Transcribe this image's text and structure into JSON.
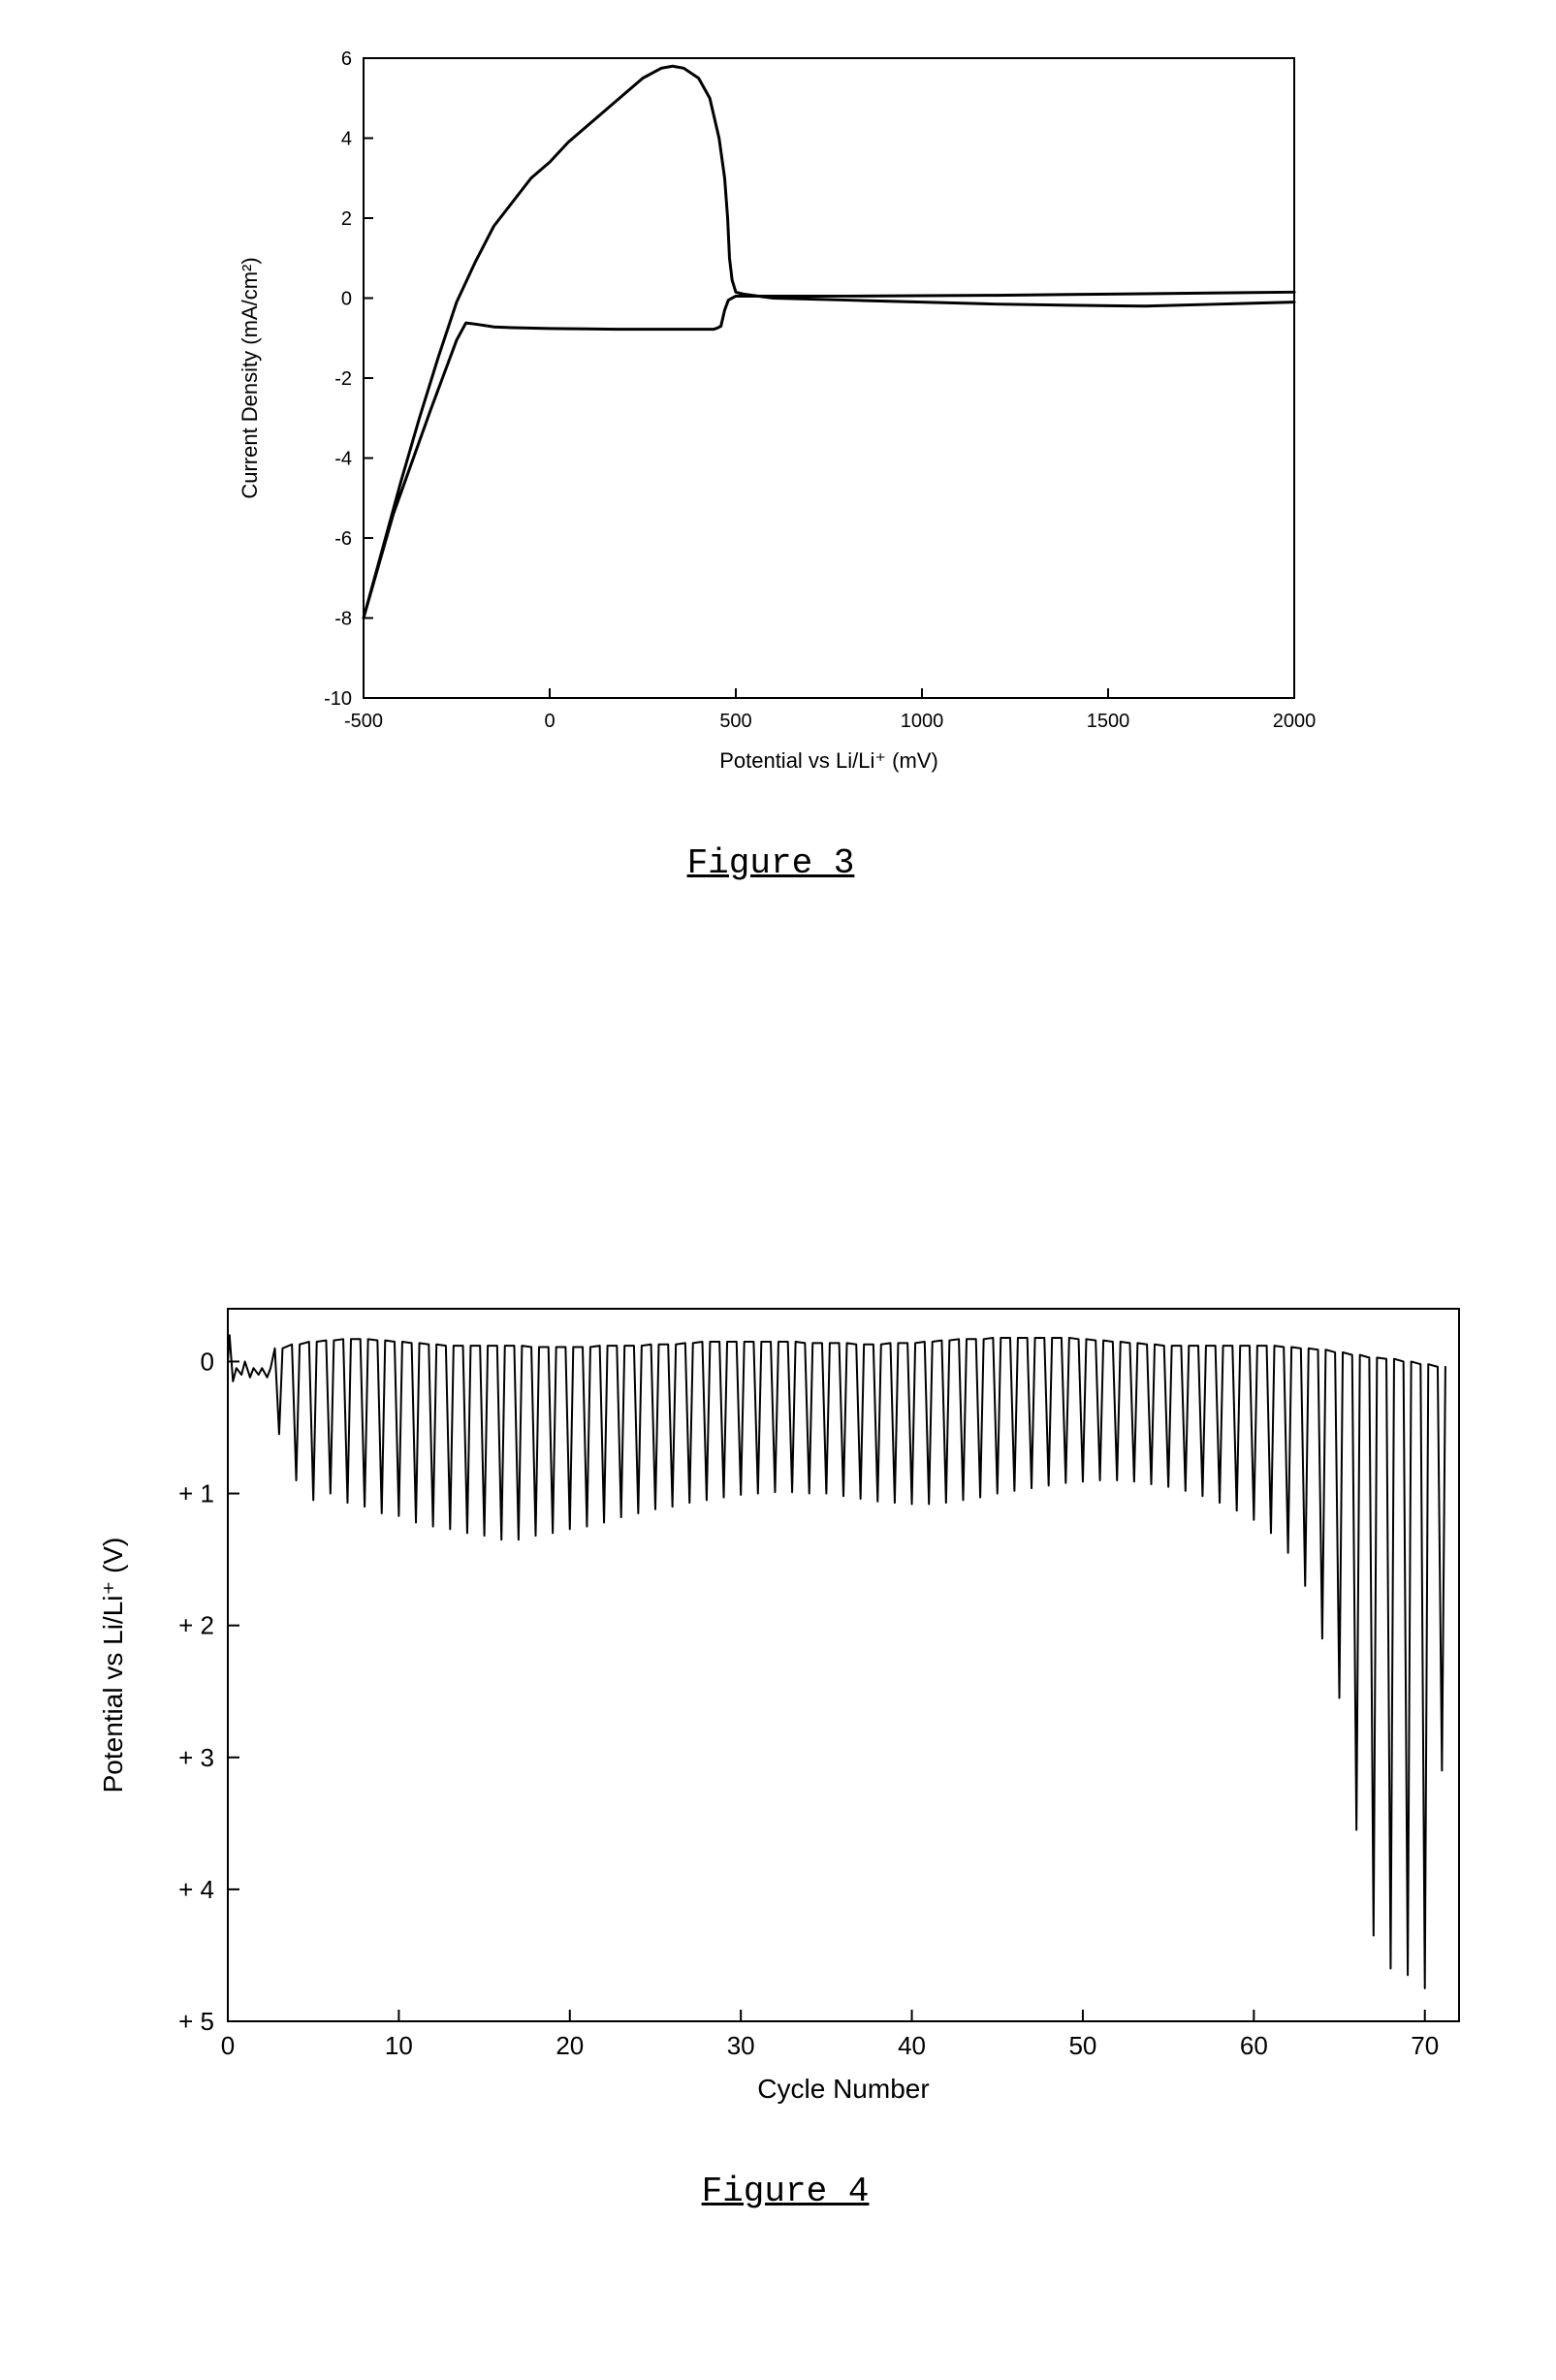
{
  "background_color": "#ffffff",
  "line_color": "#000000",
  "fig3": {
    "caption": "Figure 3",
    "type": "line",
    "xlabel": "Potential vs Li/Li⁺ (mV)",
    "ylabel": "Current Density (mA/cm²)",
    "xlim": [
      -500,
      2000
    ],
    "ylim": [
      -10,
      6
    ],
    "xticks": [
      -500,
      0,
      500,
      1000,
      1500,
      2000
    ],
    "yticks": [
      -10,
      -8,
      -6,
      -4,
      -2,
      0,
      2,
      4,
      6
    ],
    "axis_fontsize": 22,
    "tick_fontsize": 20,
    "caption_fontsize": 36,
    "line_width": 3,
    "axis_line_width": 2,
    "tick_length": 10,
    "plot_background": "#ffffff",
    "curve": [
      [
        2000,
        0.15
      ],
      [
        1800,
        0.13
      ],
      [
        1600,
        0.11
      ],
      [
        1400,
        0.09
      ],
      [
        1200,
        0.07
      ],
      [
        1000,
        0.06
      ],
      [
        800,
        0.05
      ],
      [
        700,
        0.05
      ],
      [
        600,
        0.05
      ],
      [
        550,
        0.05
      ],
      [
        520,
        0.05
      ],
      [
        500,
        0.05
      ],
      [
        480,
        -0.05
      ],
      [
        470,
        -0.3
      ],
      [
        465,
        -0.5
      ],
      [
        460,
        -0.7
      ],
      [
        450,
        -0.75
      ],
      [
        440,
        -0.78
      ],
      [
        400,
        -0.78
      ],
      [
        300,
        -0.78
      ],
      [
        200,
        -0.78
      ],
      [
        100,
        -0.77
      ],
      [
        0,
        -0.76
      ],
      [
        -100,
        -0.74
      ],
      [
        -150,
        -0.72
      ],
      [
        -200,
        -0.65
      ],
      [
        -225,
        -0.62
      ],
      [
        -250,
        -1.05
      ],
      [
        -280,
        -1.8
      ],
      [
        -320,
        -2.8
      ],
      [
        -370,
        -4.1
      ],
      [
        -420,
        -5.4
      ],
      [
        -460,
        -6.7
      ],
      [
        -500,
        -8.0
      ],
      [
        -500,
        -8.0
      ],
      [
        -450,
        -6.3
      ],
      [
        -400,
        -4.6
      ],
      [
        -350,
        -3.0
      ],
      [
        -300,
        -1.5
      ],
      [
        -250,
        -0.1
      ],
      [
        -200,
        0.9
      ],
      [
        -150,
        1.8
      ],
      [
        -100,
        2.4
      ],
      [
        -50,
        3.0
      ],
      [
        0,
        3.4
      ],
      [
        50,
        3.9
      ],
      [
        100,
        4.3
      ],
      [
        150,
        4.7
      ],
      [
        200,
        5.1
      ],
      [
        250,
        5.5
      ],
      [
        300,
        5.75
      ],
      [
        330,
        5.8
      ],
      [
        360,
        5.75
      ],
      [
        400,
        5.5
      ],
      [
        430,
        5.0
      ],
      [
        455,
        4.0
      ],
      [
        470,
        3.0
      ],
      [
        478,
        2.0
      ],
      [
        483,
        1.0
      ],
      [
        490,
        0.45
      ],
      [
        500,
        0.15
      ],
      [
        520,
        0.1
      ],
      [
        600,
        0.0
      ],
      [
        800,
        -0.05
      ],
      [
        1000,
        -0.1
      ],
      [
        1200,
        -0.15
      ],
      [
        1400,
        -0.18
      ],
      [
        1600,
        -0.2
      ],
      [
        1800,
        -0.15
      ],
      [
        2000,
        -0.1
      ]
    ]
  },
  "fig4": {
    "caption": "Figure 4",
    "type": "line",
    "xlabel": "Cycle Number",
    "ylabel": "Potential vs Li/Li⁺ (V)",
    "xlim": [
      0,
      72
    ],
    "ylim_display": [
      -0.4,
      5
    ],
    "xticks": [
      0,
      10,
      20,
      30,
      40,
      50,
      60,
      70
    ],
    "yticks": [
      0,
      1,
      2,
      3,
      4,
      5
    ],
    "ytick_prefix": "+ ",
    "axis_fontsize": 28,
    "tick_fontsize": 26,
    "caption_fontsize": 36,
    "line_width": 2,
    "axis_line_width": 2,
    "tick_length": 12,
    "plot_background": "#ffffff",
    "prelude": [
      [
        0,
        0.0
      ],
      [
        0.1,
        -0.2
      ],
      [
        0.3,
        0.15
      ],
      [
        0.5,
        0.05
      ],
      [
        0.8,
        0.1
      ],
      [
        1.0,
        0.0
      ],
      [
        1.3,
        0.12
      ],
      [
        1.5,
        0.05
      ],
      [
        1.8,
        0.1
      ],
      [
        2.0,
        0.05
      ],
      [
        2.3,
        0.12
      ],
      [
        2.5,
        0.05
      ]
    ],
    "cycles": [
      {
        "x": 3,
        "lo": -0.1,
        "hi": 0.55
      },
      {
        "x": 4,
        "lo": -0.13,
        "hi": 0.9
      },
      {
        "x": 5,
        "lo": -0.15,
        "hi": 1.05
      },
      {
        "x": 6,
        "lo": -0.16,
        "hi": 1.0
      },
      {
        "x": 7,
        "lo": -0.17,
        "hi": 1.07
      },
      {
        "x": 8,
        "lo": -0.17,
        "hi": 1.1
      },
      {
        "x": 9,
        "lo": -0.16,
        "hi": 1.15
      },
      {
        "x": 10,
        "lo": -0.15,
        "hi": 1.17
      },
      {
        "x": 11,
        "lo": -0.14,
        "hi": 1.22
      },
      {
        "x": 12,
        "lo": -0.13,
        "hi": 1.25
      },
      {
        "x": 13,
        "lo": -0.12,
        "hi": 1.27
      },
      {
        "x": 14,
        "lo": -0.12,
        "hi": 1.3
      },
      {
        "x": 15,
        "lo": -0.12,
        "hi": 1.32
      },
      {
        "x": 16,
        "lo": -0.12,
        "hi": 1.35
      },
      {
        "x": 17,
        "lo": -0.12,
        "hi": 1.35
      },
      {
        "x": 18,
        "lo": -0.11,
        "hi": 1.32
      },
      {
        "x": 19,
        "lo": -0.11,
        "hi": 1.3
      },
      {
        "x": 20,
        "lo": -0.11,
        "hi": 1.27
      },
      {
        "x": 21,
        "lo": -0.11,
        "hi": 1.25
      },
      {
        "x": 22,
        "lo": -0.12,
        "hi": 1.22
      },
      {
        "x": 23,
        "lo": -0.12,
        "hi": 1.18
      },
      {
        "x": 24,
        "lo": -0.12,
        "hi": 1.15
      },
      {
        "x": 25,
        "lo": -0.13,
        "hi": 1.12
      },
      {
        "x": 26,
        "lo": -0.13,
        "hi": 1.1
      },
      {
        "x": 27,
        "lo": -0.14,
        "hi": 1.07
      },
      {
        "x": 28,
        "lo": -0.15,
        "hi": 1.05
      },
      {
        "x": 29,
        "lo": -0.15,
        "hi": 1.03
      },
      {
        "x": 30,
        "lo": -0.15,
        "hi": 1.01
      },
      {
        "x": 31,
        "lo": -0.15,
        "hi": 1.0
      },
      {
        "x": 32,
        "lo": -0.15,
        "hi": 0.99
      },
      {
        "x": 33,
        "lo": -0.15,
        "hi": 0.99
      },
      {
        "x": 34,
        "lo": -0.14,
        "hi": 1.0
      },
      {
        "x": 35,
        "lo": -0.14,
        "hi": 1.0
      },
      {
        "x": 36,
        "lo": -0.14,
        "hi": 1.02
      },
      {
        "x": 37,
        "lo": -0.13,
        "hi": 1.04
      },
      {
        "x": 38,
        "lo": -0.13,
        "hi": 1.06
      },
      {
        "x": 39,
        "lo": -0.14,
        "hi": 1.07
      },
      {
        "x": 40,
        "lo": -0.14,
        "hi": 1.08
      },
      {
        "x": 41,
        "lo": -0.15,
        "hi": 1.08
      },
      {
        "x": 42,
        "lo": -0.16,
        "hi": 1.07
      },
      {
        "x": 43,
        "lo": -0.17,
        "hi": 1.05
      },
      {
        "x": 44,
        "lo": -0.17,
        "hi": 1.03
      },
      {
        "x": 45,
        "lo": -0.18,
        "hi": 1.0
      },
      {
        "x": 46,
        "lo": -0.18,
        "hi": 0.98
      },
      {
        "x": 47,
        "lo": -0.18,
        "hi": 0.96
      },
      {
        "x": 48,
        "lo": -0.18,
        "hi": 0.94
      },
      {
        "x": 49,
        "lo": -0.18,
        "hi": 0.92
      },
      {
        "x": 50,
        "lo": -0.17,
        "hi": 0.91
      },
      {
        "x": 51,
        "lo": -0.16,
        "hi": 0.9
      },
      {
        "x": 52,
        "lo": -0.15,
        "hi": 0.9
      },
      {
        "x": 53,
        "lo": -0.14,
        "hi": 0.91
      },
      {
        "x": 54,
        "lo": -0.13,
        "hi": 0.93
      },
      {
        "x": 55,
        "lo": -0.12,
        "hi": 0.95
      },
      {
        "x": 56,
        "lo": -0.12,
        "hi": 0.98
      },
      {
        "x": 57,
        "lo": -0.12,
        "hi": 1.02
      },
      {
        "x": 58,
        "lo": -0.12,
        "hi": 1.07
      },
      {
        "x": 59,
        "lo": -0.12,
        "hi": 1.13
      },
      {
        "x": 60,
        "lo": -0.12,
        "hi": 1.2
      },
      {
        "x": 61,
        "lo": -0.12,
        "hi": 1.3
      },
      {
        "x": 62,
        "lo": -0.11,
        "hi": 1.45
      },
      {
        "x": 63,
        "lo": -0.1,
        "hi": 1.7
      },
      {
        "x": 64,
        "lo": -0.09,
        "hi": 2.1
      },
      {
        "x": 65,
        "lo": -0.07,
        "hi": 2.55
      },
      {
        "x": 66,
        "lo": -0.05,
        "hi": 3.55
      },
      {
        "x": 67,
        "lo": -0.03,
        "hi": 4.35
      },
      {
        "x": 68,
        "lo": -0.02,
        "hi": 4.6
      },
      {
        "x": 69,
        "lo": 0.0,
        "hi": 4.65
      },
      {
        "x": 70,
        "lo": 0.02,
        "hi": 4.75
      },
      {
        "x": 71,
        "lo": 0.04,
        "hi": 3.1
      }
    ]
  }
}
